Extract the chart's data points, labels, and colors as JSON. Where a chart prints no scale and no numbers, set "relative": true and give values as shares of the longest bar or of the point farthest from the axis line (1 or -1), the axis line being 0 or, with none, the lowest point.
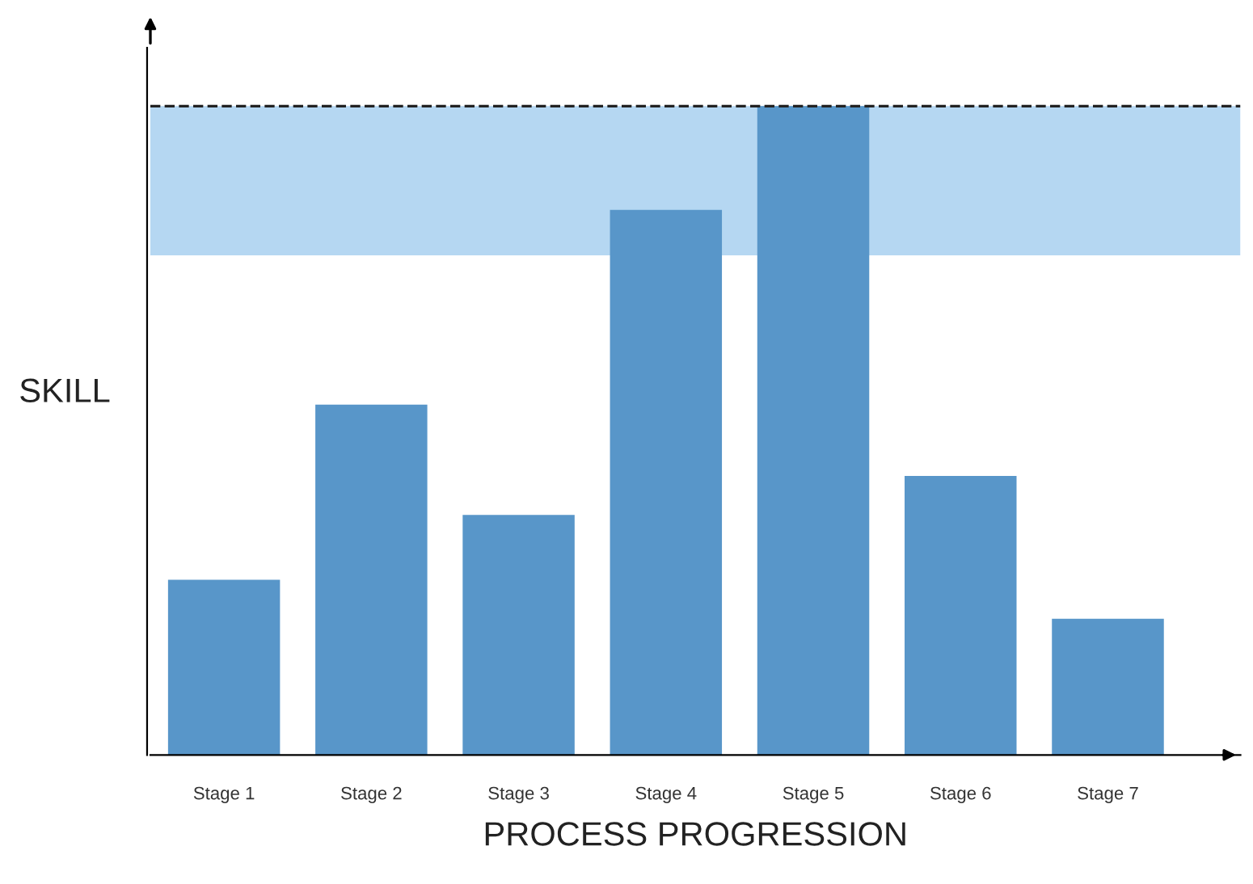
{
  "chart_data": {
    "type": "bar",
    "relative": true,
    "xlabel": "PROCESS PROGRESSION",
    "ylabel": "SKILL",
    "categories": [
      "Stage 1",
      "Stage 2",
      "Stage 3",
      "Stage 4",
      "Stage 5",
      "Stage 6",
      "Stage 7"
    ],
    "values": [
      0.27,
      0.54,
      0.37,
      0.84,
      1.0,
      0.43,
      0.21
    ],
    "color": "#5896c9",
    "ref_lines": [
      {
        "axis": "y",
        "value": 1.0,
        "label": null,
        "color": "#222222",
        "line_style": "dashed"
      }
    ],
    "bands": [
      {
        "axis": "y",
        "from": 0.77,
        "to": 1.0,
        "label": null,
        "color": "#b5d7f2"
      }
    ],
    "grid": false,
    "legend": false
  }
}
